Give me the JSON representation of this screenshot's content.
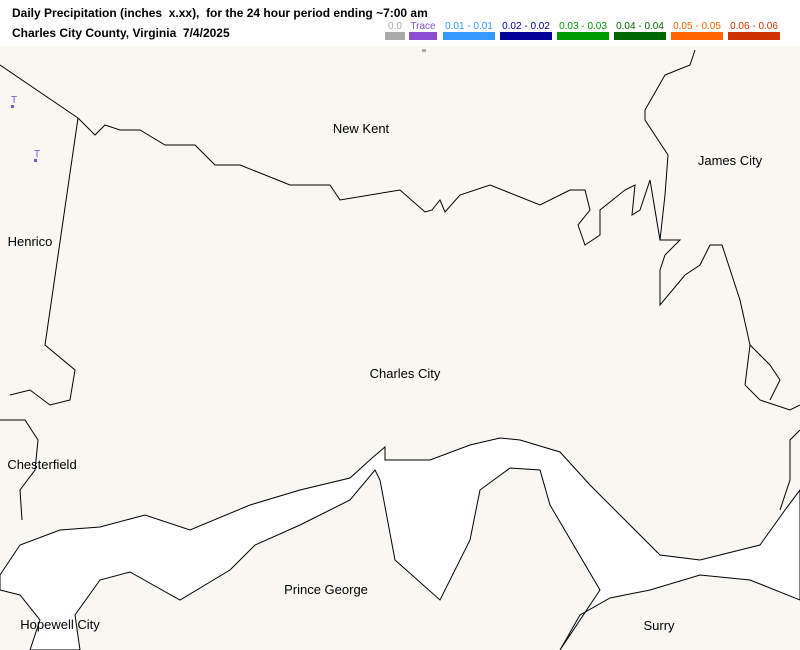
{
  "header": {
    "title": "Daily Precipitation (inches  x.xx),  for the 24 hour period ending ~7:00 am",
    "subtitle": "Charles City County, Virginia  7/4/2025"
  },
  "legend": [
    {
      "label": "0.0",
      "color": "#aaaaaa"
    },
    {
      "label": "Trace",
      "color": "#8a4fd0"
    },
    {
      "label": "0.01 - 0.01",
      "color": "#3399ff"
    },
    {
      "label": "0.02 - 0.02",
      "color": "#000099"
    },
    {
      "label": "0.03 - 0.03",
      "color": "#009900"
    },
    {
      "label": "0.04 - 0.04",
      "color": "#006600"
    },
    {
      "label": "0.05 - 0.05",
      "color": "#ff6600"
    },
    {
      "label": "0.06 - 0.06",
      "color": "#cc3300"
    }
  ],
  "map": {
    "labels": [
      "New Kent",
      "James City",
      "Henrico",
      "Charles City",
      "Chesterfield",
      "Prince George",
      "Hopewell City",
      "Surry"
    ],
    "stations": [
      {
        "label": "T",
        "color": "#8a4fd0"
      },
      {
        "label": "T",
        "color": "#8a4fd0"
      }
    ]
  }
}
